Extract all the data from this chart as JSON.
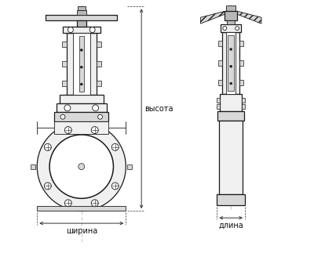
{
  "bg_color": "#ffffff",
  "line_color": "#1a1a1a",
  "dim_line_color": "#333333",
  "dim_text_color": "#111111",
  "label_shirina": "ширина",
  "label_vysota": "высота",
  "label_dlina": "длина",
  "fig_width": 4.0,
  "fig_height": 3.46,
  "dpi": 100,
  "fill_color": "#f0f0f0",
  "dark_fill": "#b8b8b8",
  "mid_fill": "#d8d8d8"
}
